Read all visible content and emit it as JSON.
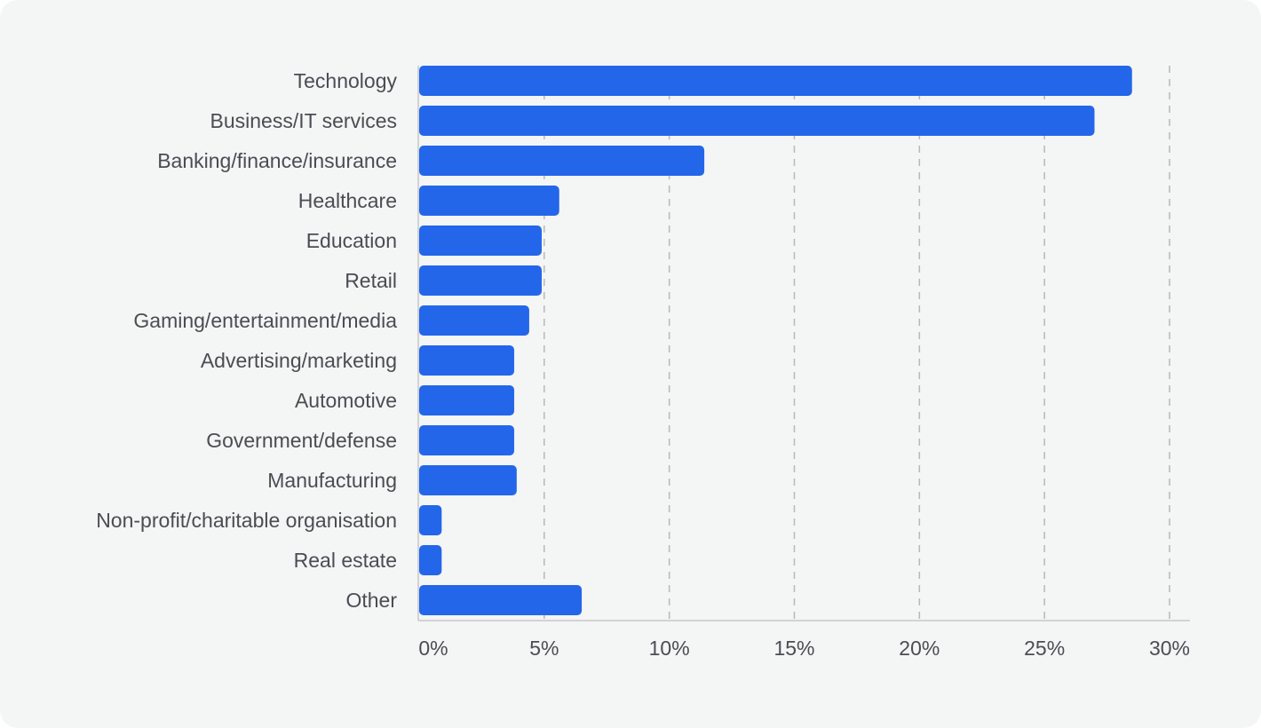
{
  "chart_data": {
    "type": "bar",
    "orientation": "horizontal",
    "categories": [
      "Technology",
      "Business/IT services",
      "Banking/finance/insurance",
      "Healthcare",
      "Education",
      "Retail",
      "Gaming/entertainment/media",
      "Advertising/marketing",
      "Automotive",
      "Government/defense",
      "Manufacturing",
      "Non-profit/charitable organisation",
      "Real estate",
      "Other"
    ],
    "values": [
      28.5,
      27.0,
      11.4,
      5.6,
      4.9,
      4.9,
      4.4,
      3.8,
      3.8,
      3.8,
      3.9,
      0.9,
      0.9,
      6.5
    ],
    "xlim": [
      0,
      30
    ],
    "xticks": [
      0,
      5,
      10,
      15,
      20,
      25,
      30
    ],
    "xtick_labels": [
      "0%",
      "5%",
      "10%",
      "15%",
      "20%",
      "25%",
      "30%"
    ],
    "title": "",
    "xlabel": "",
    "ylabel": "",
    "grid": "vertical dashed",
    "bar_color": "#2366ea",
    "grid_color": "#b8b8b8"
  }
}
